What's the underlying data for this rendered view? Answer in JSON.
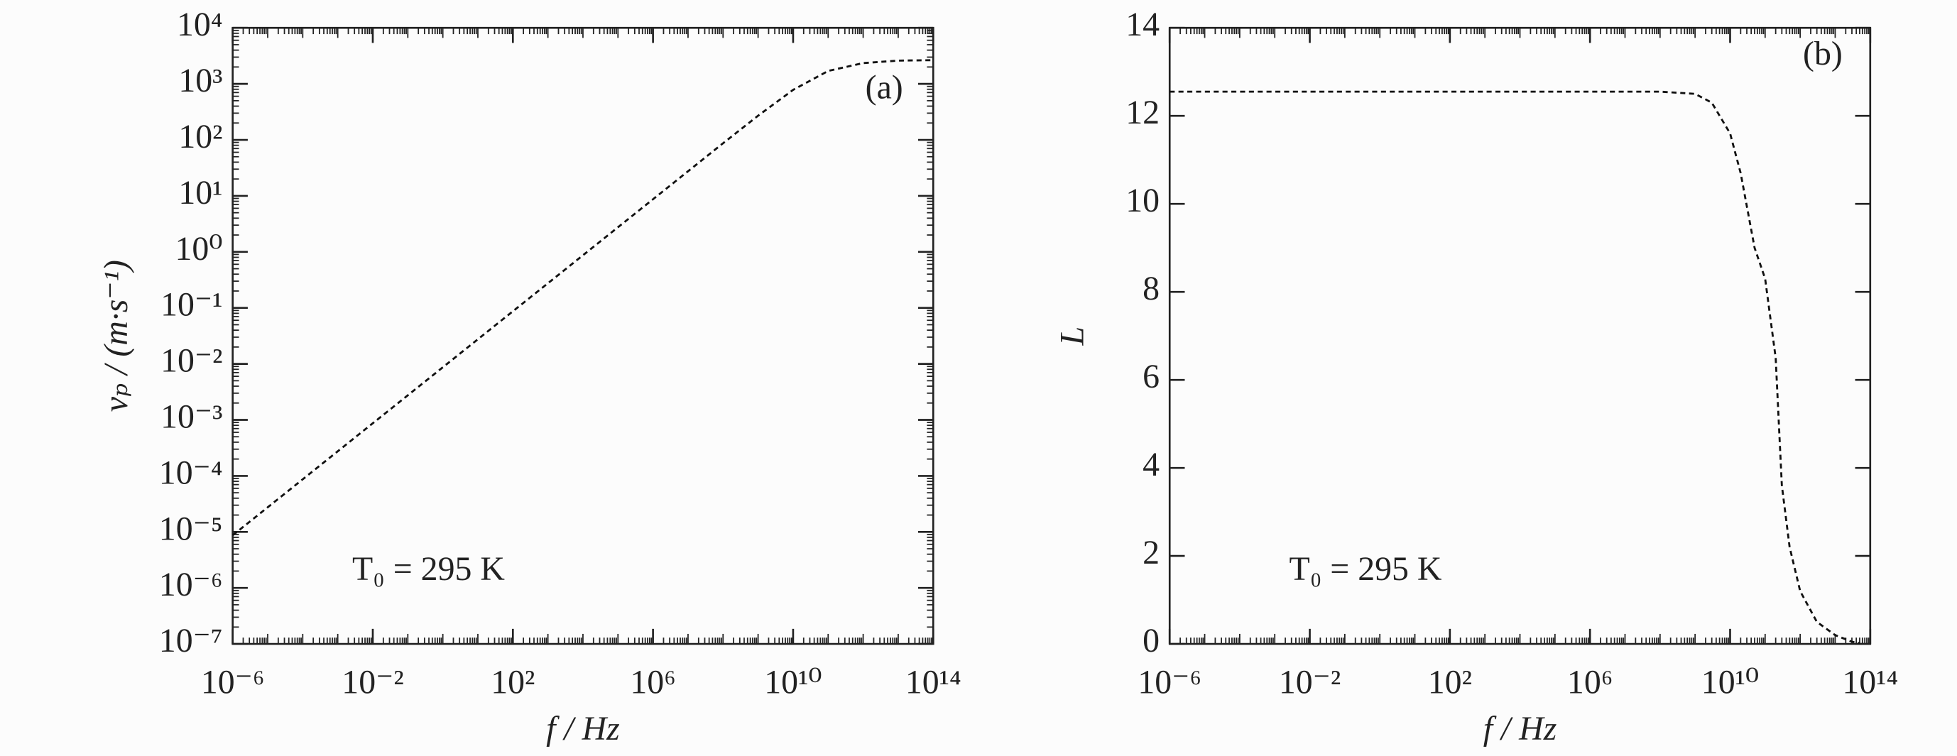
{
  "chart_data": [
    {
      "type": "line",
      "panel_label": "(a)",
      "annotation": "T₀ = 295 K",
      "xlabel": "f / Hz",
      "ylabel": "vₚ / (m·s⁻¹)",
      "xscale": "log",
      "yscale": "log",
      "xlim": [
        1e-06,
        100000000000000.0
      ],
      "ylim": [
        1e-07,
        10000.0
      ],
      "xticks": [
        {
          "value": 1e-06,
          "label": "10⁻⁶"
        },
        {
          "value": 0.01,
          "label": "10⁻²"
        },
        {
          "value": 100,
          "label": "10²"
        },
        {
          "value": 1000000.0,
          "label": "10⁶"
        },
        {
          "value": 10000000000.0,
          "label": "10¹⁰"
        },
        {
          "value": 100000000000000.0,
          "label": "10¹⁴"
        }
      ],
      "yticks": [
        {
          "value": 1e-07,
          "label": "10⁻⁷"
        },
        {
          "value": 1e-06,
          "label": "10⁻⁶"
        },
        {
          "value": 1e-05,
          "label": "10⁻⁵"
        },
        {
          "value": 0.0001,
          "label": "10⁻⁴"
        },
        {
          "value": 0.001,
          "label": "10⁻³"
        },
        {
          "value": 0.01,
          "label": "10⁻²"
        },
        {
          "value": 0.1,
          "label": "10⁻¹"
        },
        {
          "value": 1,
          "label": "10⁰"
        },
        {
          "value": 10,
          "label": "10¹"
        },
        {
          "value": 100,
          "label": "10²"
        },
        {
          "value": 1000,
          "label": "10³"
        },
        {
          "value": 10000,
          "label": "10⁴"
        }
      ],
      "x": [
        1e-06,
        1e-05,
        0.0001,
        0.001,
        0.01,
        0.1,
        1,
        10,
        100,
        1000,
        10000.0,
        100000.0,
        1000000.0,
        10000000.0,
        100000000.0,
        1000000000.0,
        10000000000.0,
        100000000000.0,
        1000000000000.0,
        10000000000000.0,
        100000000000000.0
      ],
      "series": [
        {
          "color": "#111111",
          "values": [
            8.7e-06,
            2.75e-05,
            8.7e-05,
            0.000275,
            0.00087,
            0.00275,
            0.0087,
            0.0275,
            0.087,
            0.275,
            0.87,
            2.75,
            8.7,
            27.5,
            87,
            270,
            780,
            1700,
            2350,
            2600,
            2650
          ]
        }
      ]
    },
    {
      "type": "line",
      "panel_label": "(b)",
      "annotation": "T₀ = 295 K",
      "xlabel": "f / Hz",
      "ylabel": "L",
      "xscale": "log",
      "yscale": "linear",
      "xlim": [
        1e-06,
        100000000000000.0
      ],
      "ylim": [
        0,
        14
      ],
      "xticks": [
        {
          "value": 1e-06,
          "label": "10⁻⁶"
        },
        {
          "value": 0.01,
          "label": "10⁻²"
        },
        {
          "value": 100,
          "label": "10²"
        },
        {
          "value": 1000000.0,
          "label": "10⁶"
        },
        {
          "value": 10000000000.0,
          "label": "10¹⁰"
        },
        {
          "value": 100000000000000.0,
          "label": "10¹⁴"
        }
      ],
      "yticks": [
        0,
        2,
        4,
        6,
        8,
        10,
        12,
        14
      ],
      "x": [
        1e-06,
        0.0001,
        0.01,
        1,
        100,
        10000.0,
        1000000.0,
        100000000.0,
        1000000000.0,
        3000000000.0,
        10000000000.0,
        20000000000.0,
        50000000000.0,
        100000000000.0,
        200000000000.0,
        300000000000.0,
        500000000000.0,
        1000000000000.0,
        3000000000000.0,
        10000000000000.0,
        30000000000000.0,
        50000000000000.0
      ],
      "series": [
        {
          "color": "#111111",
          "values": [
            12.55,
            12.55,
            12.55,
            12.55,
            12.55,
            12.55,
            12.55,
            12.55,
            12.5,
            12.3,
            11.6,
            10.7,
            9.0,
            8.3,
            6.5,
            3.6,
            2.2,
            1.2,
            0.5,
            0.2,
            0.05,
            0.02
          ]
        }
      ]
    }
  ]
}
